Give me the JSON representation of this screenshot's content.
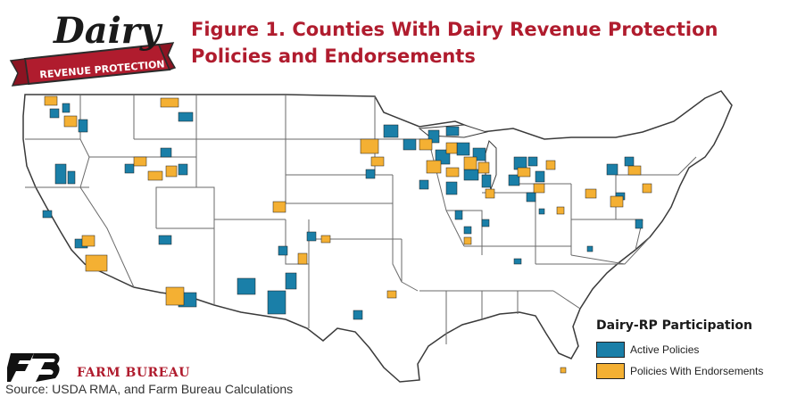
{
  "logo": {
    "word": "Dairy",
    "banner": "REVENUE PROTECTION"
  },
  "title": "Figure 1. Counties With Dairy Revenue Protection Policies and Endorsements",
  "legend": {
    "title": "Dairy-RP Participation",
    "items": [
      {
        "label": "Active Policies",
        "color": "#1a7fa8"
      },
      {
        "label": "Policies With Endorsements",
        "color": "#f4b033"
      }
    ]
  },
  "colors": {
    "active": "#1a7fa8",
    "endorsement": "#f4b033",
    "brand_red": "#b01c2e",
    "border": "#3a3a3a"
  },
  "footer": {
    "org": "FARM BUREAU",
    "source": "Source: USDA RMA, and Farm Bureau Calculations"
  }
}
